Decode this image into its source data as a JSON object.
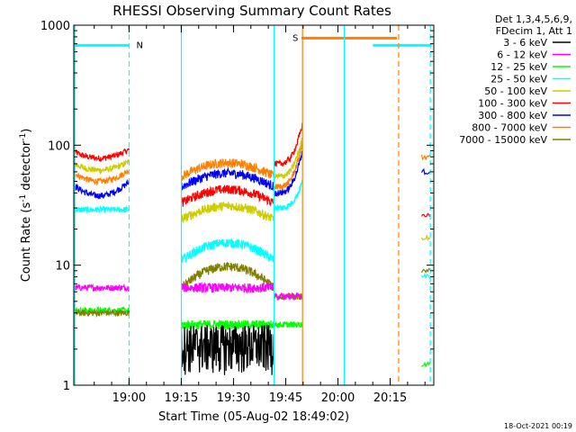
{
  "chart_data": {
    "type": "line",
    "title": "RHESSI Observing Summary Count Rates",
    "xlabel": "Start Time (05-Aug-02 18:49:02)",
    "ylabel_main": "Count Rate (s",
    "ylabel_sup1": "-1",
    "ylabel_mid": " detector",
    "ylabel_sup2": "-1",
    "ylabel_end": ")",
    "y_scale": "log",
    "ylim": [
      1,
      1000
    ],
    "x_start_minutes": 0,
    "x_range_minutes": [
      -4.9,
      98.5
    ],
    "x_ticks": [
      {
        "label": "19:00",
        "min": 10.97
      },
      {
        "label": "19:15",
        "min": 25.97
      },
      {
        "label": "19:30",
        "min": 40.97
      },
      {
        "label": "19:45",
        "min": 55.97
      },
      {
        "label": "20:00",
        "min": 70.97
      },
      {
        "label": "20:15",
        "min": 85.97
      }
    ],
    "y_ticks": [
      {
        "label": "1",
        "value": 1
      },
      {
        "label": "10",
        "value": 10
      },
      {
        "label": "100",
        "value": 100
      },
      {
        "label": "1000",
        "value": 1000
      }
    ],
    "legend_header": [
      "Det 1,3,4,5,6,9,",
      "FDecim 1, Att 1"
    ],
    "legend_position": "right",
    "series": [
      {
        "name": "3 - 6 keV",
        "color": "#000000"
      },
      {
        "name": "6 - 12 keV",
        "color": "#ff00ff"
      },
      {
        "name": "12 - 25 keV",
        "color": "#00ff00"
      },
      {
        "name": "25 - 50 keV",
        "color": "#00ffff"
      },
      {
        "name": "50 - 100 keV",
        "color": "#cccc00"
      },
      {
        "name": "100 - 300 keV",
        "color": "#ff0000"
      },
      {
        "name": "300 - 800 keV",
        "color": "#0000ff"
      },
      {
        "name": "800 - 7000 keV",
        "color": "#ff8000"
      },
      {
        "name": "7000 - 15000 keV",
        "color": "#808000"
      }
    ],
    "flag_bars": [
      {
        "label": "N",
        "color": "#00ffff",
        "start_min": -4.9,
        "end_min": 11.0,
        "value": 680
      },
      {
        "label": "",
        "color": "#00ffff",
        "start_min": 81.0,
        "end_min": 97.9,
        "value": 680
      },
      {
        "label": "S",
        "color": "#ff8000",
        "start_min": 60.5,
        "end_min": 87.9,
        "value": 780
      }
    ],
    "vlines": [
      {
        "color": "#00ffff",
        "min": -4.6,
        "style": "solid"
      },
      {
        "color": "#00ffff",
        "min": 11.0,
        "style": "dashed"
      },
      {
        "color": "#00ffff",
        "min": 26.0,
        "style": "solid"
      },
      {
        "color": "#00ffff",
        "min": 52.6,
        "style": "solid"
      },
      {
        "color": "#ff8000",
        "min": 60.8,
        "style": "solid"
      },
      {
        "color": "#00ffff",
        "min": 72.8,
        "style": "solid"
      },
      {
        "color": "#ff8000",
        "min": 88.4,
        "style": "dashed"
      },
      {
        "color": "#00ffff",
        "min": 97.5,
        "style": "dashed"
      }
    ],
    "segments": [
      {
        "start_min": -4.6,
        "end_min": 11.0
      },
      {
        "start_min": 26.0,
        "end_min": 52.6
      },
      {
        "start_min": 52.6,
        "end_min": 60.8
      },
      {
        "start_min": 95.0,
        "end_min": 97.5
      }
    ],
    "footer": "18-Oct-2021 00:19"
  }
}
